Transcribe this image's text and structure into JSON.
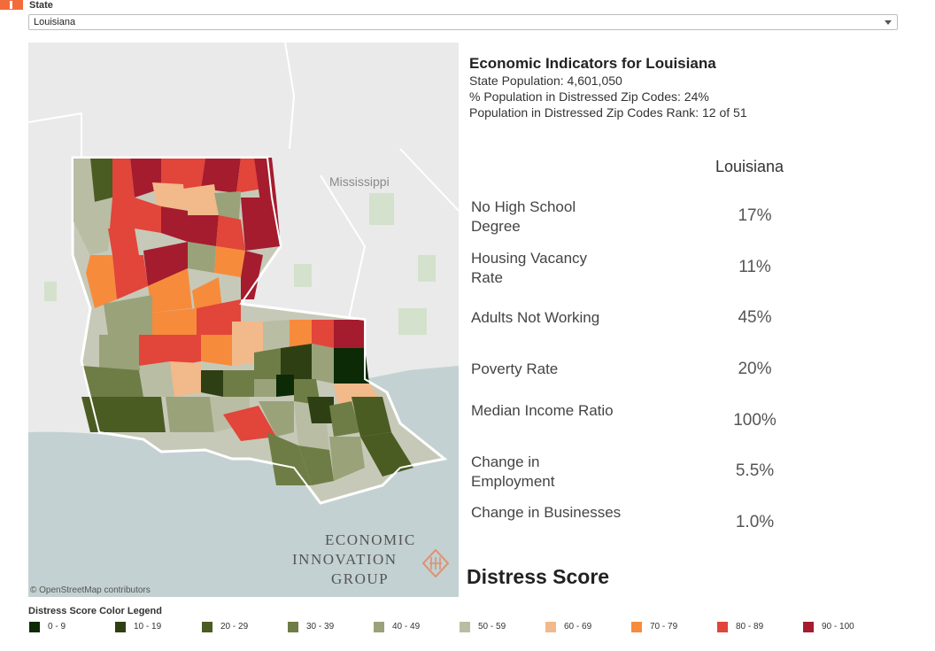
{
  "filter": {
    "label": "State",
    "selected": "Louisiana"
  },
  "map": {
    "neighbor_label": "Mississippi",
    "attribution": "© OpenStreetMap contributors",
    "logo_lines": [
      "ECONOMIC",
      "INNOVATION",
      "GROUP"
    ]
  },
  "info": {
    "title": "Economic Indicators for Louisiana",
    "population": "State Population: 4,601,050",
    "distressed_pct": "% Population in Distressed Zip Codes: 24%",
    "rank": "Population in Distressed Zip Codes Rank: 12 of 51"
  },
  "indicators": {
    "column_header": "Louisiana",
    "rows": [
      {
        "label": "No High School Degree",
        "value": "17%"
      },
      {
        "label": "Housing Vacancy Rate",
        "value": "11%"
      },
      {
        "label": "Adults Not Working",
        "value": "45%"
      },
      {
        "label": "Poverty Rate",
        "value": "20%"
      },
      {
        "label": "Median Income Ratio",
        "value": "100%"
      },
      {
        "label": "Change in Employment",
        "value": "5.5%"
      },
      {
        "label": "Change in Businesses",
        "value": "1.0%"
      }
    ]
  },
  "distress_title": "Distress Score",
  "legend": {
    "title": "Distress Score Color Legend",
    "items": [
      {
        "label": "0 - 9",
        "color": "#0b2a05"
      },
      {
        "label": "10 - 19",
        "color": "#2f3f14"
      },
      {
        "label": "20 - 29",
        "color": "#4a5c22"
      },
      {
        "label": "30 - 39",
        "color": "#6e7d45"
      },
      {
        "label": "40 - 49",
        "color": "#9aa27a"
      },
      {
        "label": "50 - 59",
        "color": "#b9bda4"
      },
      {
        "label": "60 - 69",
        "color": "#f2b98a"
      },
      {
        "label": "70 - 79",
        "color": "#f78b3c"
      },
      {
        "label": "80 - 89",
        "color": "#e2453a"
      },
      {
        "label": "90 - 100",
        "color": "#a51c2e"
      }
    ]
  }
}
